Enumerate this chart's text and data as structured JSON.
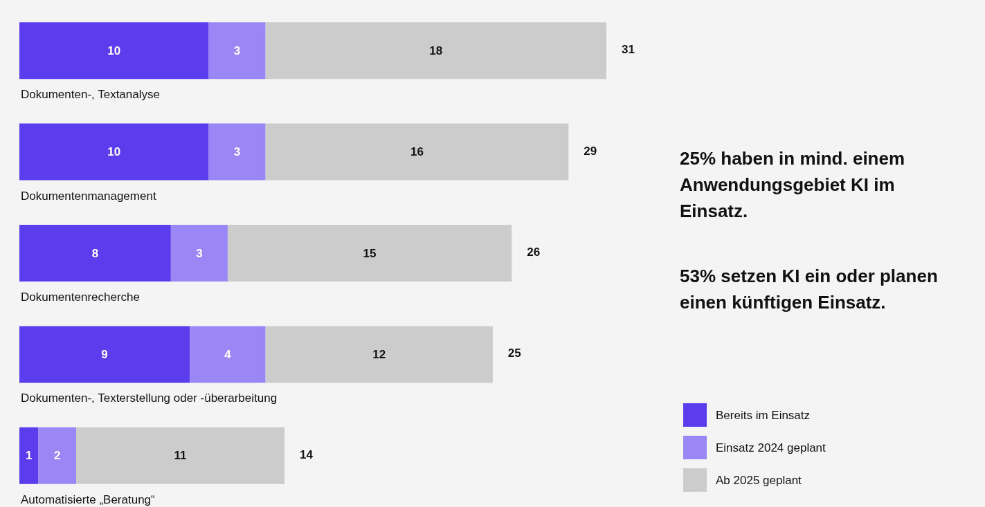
{
  "chart_data": {
    "type": "bar",
    "orientation": "horizontal",
    "stacked": true,
    "data_labels": true,
    "legend": "bottom right",
    "categories": [
      "Dokumenten-, Textanalyse",
      "Dokumentenmanagement",
      "Dokumentenrecherche",
      "Dokumenten-, Texterstellung oder -überarbeitung",
      "Automatisierte „Beratung“"
    ],
    "series": [
      {
        "name": "Bereits im Einsatz",
        "color": "#5b3ded",
        "values": [
          10,
          10,
          8,
          9,
          1
        ]
      },
      {
        "name": "Einsatz 2024 geplant",
        "color": "#9a87f5",
        "values": [
          3,
          3,
          3,
          4,
          2
        ]
      },
      {
        "name": "Ab 2025 geplant",
        "color": "#cccccc",
        "values": [
          18,
          16,
          15,
          12,
          11
        ]
      }
    ],
    "totals": [
      "31",
      "29",
      "26",
      "25",
      "14"
    ],
    "annotations": [
      "25% haben in mind. einem Anwendungsgebiet KI im Einsatz.",
      "53% setzen KI ein oder planen einen künftigen Einsatz."
    ]
  }
}
